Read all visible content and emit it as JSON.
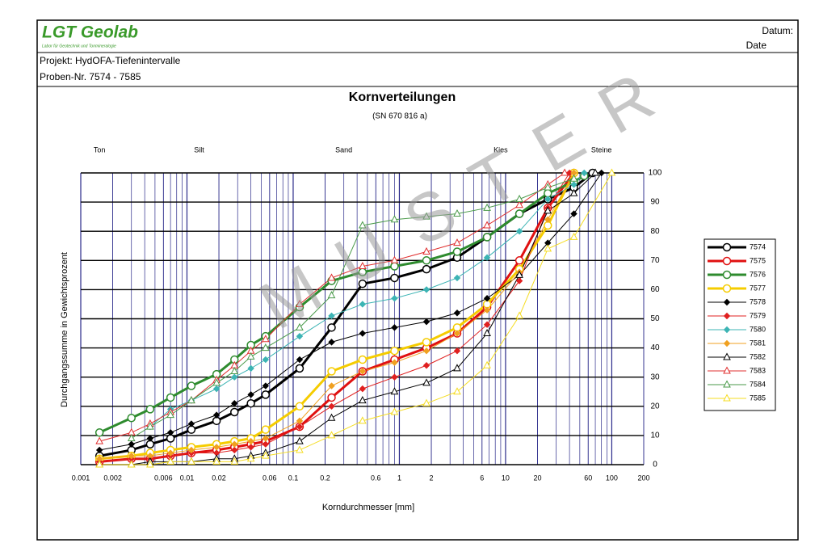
{
  "header": {
    "logo": "LGT Geolab",
    "logo_sub": "Labor für Geotechnik und Tonmineralogie",
    "date_label": "Datum:",
    "date_label_en": "Date"
  },
  "project": {
    "line1": "Projekt: HydOFA-Tiefenintervalle",
    "line2": "Proben-Nr. 7574 - 7585"
  },
  "chart_data": {
    "type": "line",
    "title": "Kornverteilungen",
    "subtitle": "(SN 670 816 a)",
    "x_label": "Korndurchmesser [mm]",
    "y_label": "Durchgangssumme in Gewichtsprozent",
    "watermark": "MUSTER",
    "zones": [
      {
        "label": "Ton",
        "x": 0.0015
      },
      {
        "label": "Silt",
        "x": 0.013
      },
      {
        "label": "Sand",
        "x": 0.3
      },
      {
        "label": "Kies",
        "x": 9
      },
      {
        "label": "Steine",
        "x": 80
      }
    ],
    "x_log": true,
    "xlim": [
      0.001,
      200
    ],
    "xticks": [
      0.001,
      0.002,
      0.006,
      0.01,
      0.02,
      0.06,
      0.1,
      0.2,
      0.6,
      1,
      2,
      6,
      10,
      20,
      60,
      100,
      200
    ],
    "ylim": [
      0,
      100
    ],
    "yticks": [
      0,
      10,
      20,
      30,
      40,
      50,
      60,
      70,
      80,
      90,
      100
    ],
    "grid": true,
    "legend": "right",
    "series": [
      {
        "name": "7574",
        "color": "#000000",
        "marker": "circle",
        "line_width": 3,
        "x": [
          0.0015,
          0.003,
          0.0045,
          0.007,
          0.011,
          0.019,
          0.028,
          0.04,
          0.055,
          0.115,
          0.23,
          0.45,
          0.9,
          1.8,
          3.5,
          6.7,
          13.5,
          25,
          44,
          66
        ],
        "values": [
          3,
          5,
          7,
          9,
          12,
          15,
          18,
          21,
          24,
          33,
          47,
          62,
          64,
          67,
          71,
          78,
          86,
          91,
          95,
          100
        ]
      },
      {
        "name": "7575",
        "color": "#e01010",
        "marker": "circle",
        "line_width": 3,
        "x": [
          0.0015,
          0.003,
          0.0045,
          0.007,
          0.011,
          0.019,
          0.028,
          0.04,
          0.055,
          0.115,
          0.23,
          0.45,
          0.9,
          1.8,
          3.5,
          6.7,
          13.5,
          25,
          44
        ],
        "values": [
          1,
          2,
          2,
          3,
          4,
          5,
          6,
          7,
          8,
          13,
          23,
          32,
          36,
          40,
          45,
          54,
          70,
          88,
          100
        ]
      },
      {
        "name": "7576",
        "color": "#2e8b2e",
        "marker": "circle",
        "line_width": 3,
        "x": [
          0.0015,
          0.003,
          0.0045,
          0.007,
          0.011,
          0.019,
          0.028,
          0.04,
          0.055,
          0.115,
          0.23,
          0.45,
          0.9,
          1.8,
          3.5,
          6.7,
          13.5,
          25,
          44,
          55
        ],
        "values": [
          11,
          16,
          19,
          23,
          27,
          31,
          36,
          41,
          44,
          54,
          63,
          66,
          68,
          70,
          73,
          78,
          86,
          93,
          97,
          99
        ]
      },
      {
        "name": "7577",
        "color": "#f5cc00",
        "marker": "circle",
        "line_width": 3,
        "x": [
          0.0015,
          0.003,
          0.0045,
          0.007,
          0.011,
          0.019,
          0.028,
          0.04,
          0.055,
          0.115,
          0.23,
          0.45,
          0.9,
          1.8,
          3.5,
          6.7,
          13.5,
          25,
          44
        ],
        "values": [
          2,
          3,
          4,
          5,
          6,
          7,
          8,
          9,
          12,
          20,
          32,
          36,
          39,
          42,
          47,
          55,
          67,
          82,
          100
        ]
      },
      {
        "name": "7578",
        "color": "#000000",
        "marker": "diamond",
        "line_width": 1,
        "x": [
          0.0015,
          0.003,
          0.0045,
          0.007,
          0.011,
          0.019,
          0.028,
          0.04,
          0.055,
          0.115,
          0.23,
          0.45,
          0.9,
          1.8,
          3.5,
          6.7,
          13.5,
          25,
          44,
          80
        ],
        "values": [
          5,
          7,
          9,
          11,
          14,
          17,
          21,
          24,
          27,
          36,
          42,
          45,
          47,
          49,
          52,
          57,
          65,
          76,
          86,
          100
        ]
      },
      {
        "name": "7579",
        "color": "#e02020",
        "marker": "diamond",
        "line_width": 1,
        "x": [
          0.0015,
          0.003,
          0.0045,
          0.007,
          0.011,
          0.019,
          0.028,
          0.04,
          0.055,
          0.115,
          0.23,
          0.45,
          0.9,
          1.8,
          3.5,
          6.7,
          13.5,
          25,
          40
        ],
        "values": [
          1,
          2,
          2,
          3,
          4,
          4,
          5,
          6,
          7,
          13,
          20,
          26,
          30,
          34,
          39,
          48,
          63,
          88,
          100
        ]
      },
      {
        "name": "7580",
        "color": "#3cb4b4",
        "marker": "diamond",
        "line_width": 1,
        "x": [
          0.0045,
          0.007,
          0.011,
          0.019,
          0.028,
          0.04,
          0.055,
          0.115,
          0.23,
          0.45,
          0.9,
          1.8,
          3.5,
          6.7,
          13.5,
          25,
          44,
          55
        ],
        "values": [
          13,
          19,
          22,
          26,
          30,
          33,
          36,
          44,
          51,
          55,
          57,
          60,
          64,
          71,
          80,
          91,
          96,
          100
        ]
      },
      {
        "name": "7581",
        "color": "#f0a020",
        "marker": "diamond",
        "line_width": 1,
        "x": [
          0.0015,
          0.003,
          0.0045,
          0.007,
          0.011,
          0.019,
          0.028,
          0.04,
          0.055,
          0.115,
          0.23,
          0.45,
          0.9,
          1.8,
          3.5,
          6.7,
          13.5,
          25,
          44
        ],
        "values": [
          2,
          3,
          3,
          4,
          5,
          6,
          7,
          8,
          9,
          15,
          27,
          32,
          35,
          39,
          45,
          53,
          66,
          84,
          100
        ]
      },
      {
        "name": "7582",
        "color": "#000000",
        "marker": "triangle",
        "line_width": 1,
        "x": [
          0.0015,
          0.003,
          0.0045,
          0.007,
          0.011,
          0.019,
          0.028,
          0.04,
          0.055,
          0.115,
          0.23,
          0.45,
          0.9,
          1.8,
          3.5,
          6.7,
          13.5,
          25,
          44,
          70
        ],
        "values": [
          0,
          0,
          1,
          1,
          1,
          2,
          2,
          3,
          4,
          8,
          16,
          22,
          25,
          28,
          33,
          45,
          65,
          87,
          93,
          100
        ]
      },
      {
        "name": "7583",
        "color": "#e03030",
        "marker": "triangle",
        "line_width": 1,
        "x": [
          0.0015,
          0.003,
          0.0045,
          0.007,
          0.011,
          0.019,
          0.028,
          0.04,
          0.055,
          0.115,
          0.23,
          0.45,
          0.9,
          1.8,
          3.5,
          6.7,
          13.5,
          25,
          36
        ],
        "values": [
          8,
          11,
          14,
          18,
          22,
          29,
          34,
          39,
          43,
          55,
          64,
          68,
          70,
          73,
          76,
          82,
          89,
          96,
          100
        ]
      },
      {
        "name": "7584",
        "color": "#4a9a4a",
        "marker": "triangle",
        "line_width": 1,
        "x": [
          0.003,
          0.0045,
          0.007,
          0.011,
          0.019,
          0.028,
          0.04,
          0.055,
          0.115,
          0.23,
          0.45,
          0.9,
          1.8,
          3.5,
          6.7,
          13.5,
          25,
          44
        ],
        "values": [
          9,
          13,
          17,
          22,
          28,
          32,
          37,
          40,
          47,
          58,
          82,
          84,
          85,
          86,
          88,
          91,
          95,
          98
        ]
      },
      {
        "name": "7585",
        "color": "#f5dc20",
        "marker": "triangle",
        "line_width": 1,
        "x": [
          0.0015,
          0.003,
          0.0045,
          0.007,
          0.011,
          0.019,
          0.028,
          0.04,
          0.055,
          0.115,
          0.23,
          0.45,
          0.9,
          1.8,
          3.5,
          6.7,
          13.5,
          25,
          44,
          100
        ],
        "values": [
          0,
          0,
          0,
          1,
          1,
          1,
          1,
          2,
          3,
          5,
          10,
          15,
          18,
          21,
          25,
          34,
          51,
          74,
          78,
          100
        ]
      }
    ]
  }
}
